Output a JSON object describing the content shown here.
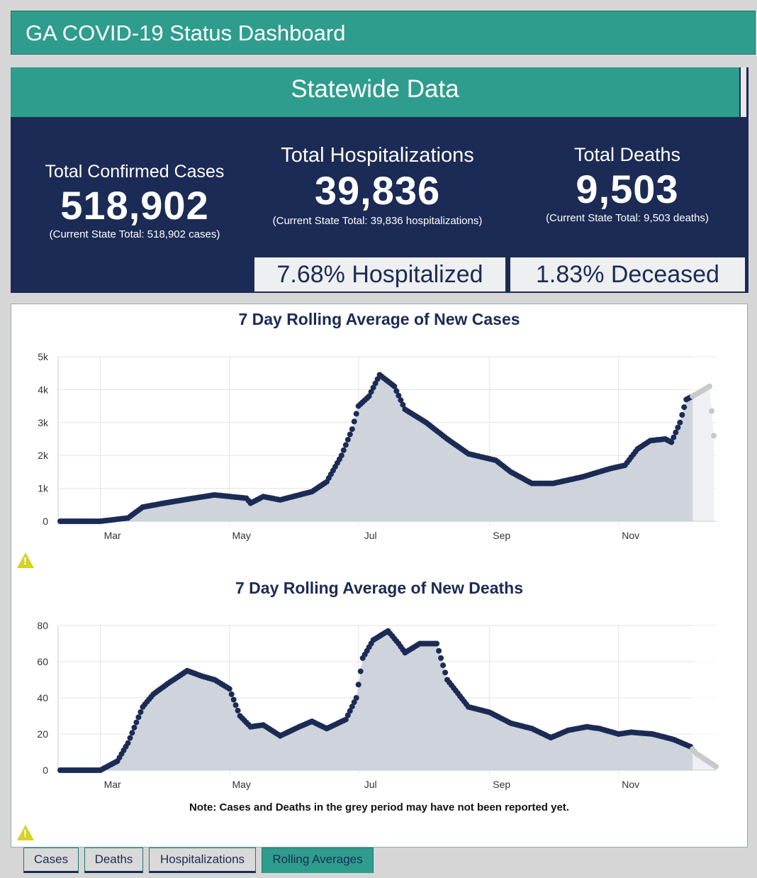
{
  "header": {
    "title": "GA COVID-19 Status Dashboard"
  },
  "statewide": {
    "title": "Statewide Data",
    "cases": {
      "label": "Total Confirmed Cases",
      "value": "518,902",
      "sub": "(Current State Total: 518,902 cases)"
    },
    "hospitalizations": {
      "label": "Total Hospitalizations",
      "value": "39,836",
      "sub": "(Current State Total: 39,836 hospitalizations)",
      "pct": "7.68% Hospitalized"
    },
    "deaths": {
      "label": "Total Deaths",
      "value": "9,503",
      "sub": "(Current State Total: 9,503 deaths)",
      "pct": "1.83% Deceased"
    }
  },
  "note": "Note: Cases and Deaths in the grey period may have not been reported yet.",
  "tabs": [
    {
      "label": "Cases"
    },
    {
      "label": "Deaths"
    },
    {
      "label": "Hospitalizations"
    },
    {
      "label": "Rolling Averages",
      "active": true
    }
  ],
  "colors": {
    "teal": "#2f9d8e",
    "navy": "#1b2b55",
    "area": "#ced3dc",
    "grey_period": "#c9c9c9",
    "warning": "#d8d12a"
  },
  "icons": [
    "warning-icon"
  ],
  "chart_data": [
    {
      "type": "area",
      "title": "7 Day Rolling Average of New Cases",
      "xlabel": "",
      "ylabel": "",
      "xlim": [
        "2020-02-10",
        "2020-12-17"
      ],
      "ylim": [
        0,
        5000
      ],
      "yticks": [
        {
          "v": 0,
          "label": "0"
        },
        {
          "v": 1000,
          "label": "1k"
        },
        {
          "v": 2000,
          "label": "2k"
        },
        {
          "v": 3000,
          "label": "3k"
        },
        {
          "v": 4000,
          "label": "4k"
        },
        {
          "v": 5000,
          "label": "5k"
        }
      ],
      "xticks": [
        {
          "date": "2020-03-01",
          "label": "Mar"
        },
        {
          "date": "2020-05-01",
          "label": "May"
        },
        {
          "date": "2020-07-01",
          "label": "Jul"
        },
        {
          "date": "2020-09-01",
          "label": "Sep"
        },
        {
          "date": "2020-11-01",
          "label": "Nov"
        }
      ],
      "grid": true,
      "grey_period_start": "2020-12-06",
      "points": [
        [
          "2020-02-11",
          0
        ],
        [
          "2020-03-01",
          0
        ],
        [
          "2020-03-14",
          100
        ],
        [
          "2020-03-21",
          430
        ],
        [
          "2020-03-31",
          550
        ],
        [
          "2020-04-14",
          700
        ],
        [
          "2020-04-24",
          800
        ],
        [
          "2020-05-09",
          700
        ],
        [
          "2020-05-11",
          550
        ],
        [
          "2020-05-17",
          750
        ],
        [
          "2020-05-25",
          650
        ],
        [
          "2020-06-03",
          800
        ],
        [
          "2020-06-09",
          900
        ],
        [
          "2020-06-16",
          1200
        ],
        [
          "2020-06-23",
          2000
        ],
        [
          "2020-06-28",
          2800
        ],
        [
          "2020-07-01",
          3500
        ],
        [
          "2020-07-06",
          3800
        ],
        [
          "2020-07-11",
          4450
        ],
        [
          "2020-07-18",
          4100
        ],
        [
          "2020-07-23",
          3400
        ],
        [
          "2020-08-02",
          3000
        ],
        [
          "2020-08-12",
          2500
        ],
        [
          "2020-08-22",
          2050
        ],
        [
          "2020-09-04",
          1850
        ],
        [
          "2020-09-11",
          1500
        ],
        [
          "2020-09-21",
          1150
        ],
        [
          "2020-10-01",
          1150
        ],
        [
          "2020-10-15",
          1350
        ],
        [
          "2020-10-28",
          1600
        ],
        [
          "2020-11-04",
          1700
        ],
        [
          "2020-11-10",
          2200
        ],
        [
          "2020-11-16",
          2450
        ],
        [
          "2020-11-23",
          2500
        ],
        [
          "2020-11-26",
          2400
        ],
        [
          "2020-11-30",
          3000
        ],
        [
          "2020-12-03",
          3700
        ],
        [
          "2020-12-06",
          3800
        ],
        [
          "2020-12-14",
          4100
        ],
        [
          "2020-12-16",
          2600
        ]
      ]
    },
    {
      "type": "area",
      "title": "7 Day Rolling Average of New Deaths",
      "xlabel": "",
      "ylabel": "",
      "xlim": [
        "2020-02-10",
        "2020-12-17"
      ],
      "ylim": [
        0,
        80
      ],
      "yticks": [
        {
          "v": 0,
          "label": "0"
        },
        {
          "v": 20,
          "label": "20"
        },
        {
          "v": 40,
          "label": "40"
        },
        {
          "v": 60,
          "label": "60"
        },
        {
          "v": 80,
          "label": "80"
        }
      ],
      "xticks": [
        {
          "date": "2020-03-01",
          "label": "Mar"
        },
        {
          "date": "2020-05-01",
          "label": "May"
        },
        {
          "date": "2020-07-01",
          "label": "Jul"
        },
        {
          "date": "2020-09-01",
          "label": "Sep"
        },
        {
          "date": "2020-11-01",
          "label": "Nov"
        }
      ],
      "grid": true,
      "grey_period_start": "2020-12-06",
      "points": [
        [
          "2020-02-11",
          0
        ],
        [
          "2020-03-01",
          0
        ],
        [
          "2020-03-09",
          5
        ],
        [
          "2020-03-14",
          15
        ],
        [
          "2020-03-21",
          35
        ],
        [
          "2020-03-26",
          42
        ],
        [
          "2020-04-02",
          48
        ],
        [
          "2020-04-11",
          55
        ],
        [
          "2020-04-18",
          52
        ],
        [
          "2020-04-24",
          50
        ],
        [
          "2020-05-01",
          45
        ],
        [
          "2020-05-06",
          30
        ],
        [
          "2020-05-11",
          24
        ],
        [
          "2020-05-17",
          25
        ],
        [
          "2020-05-25",
          19
        ],
        [
          "2020-06-03",
          24
        ],
        [
          "2020-06-09",
          27
        ],
        [
          "2020-06-16",
          23
        ],
        [
          "2020-06-25",
          28
        ],
        [
          "2020-06-30",
          40
        ],
        [
          "2020-07-03",
          62
        ],
        [
          "2020-07-08",
          72
        ],
        [
          "2020-07-15",
          77
        ],
        [
          "2020-07-20",
          70
        ],
        [
          "2020-07-23",
          65
        ],
        [
          "2020-07-30",
          70
        ],
        [
          "2020-08-07",
          70
        ],
        [
          "2020-08-12",
          50
        ],
        [
          "2020-08-22",
          35
        ],
        [
          "2020-09-01",
          32
        ],
        [
          "2020-09-11",
          26
        ],
        [
          "2020-09-21",
          23
        ],
        [
          "2020-09-30",
          18
        ],
        [
          "2020-10-08",
          22
        ],
        [
          "2020-10-17",
          24
        ],
        [
          "2020-10-23",
          23
        ],
        [
          "2020-11-01",
          20
        ],
        [
          "2020-11-07",
          21
        ],
        [
          "2020-11-17",
          20
        ],
        [
          "2020-11-27",
          17
        ],
        [
          "2020-12-05",
          13
        ],
        [
          "2020-12-08",
          9
        ],
        [
          "2020-12-17",
          2
        ]
      ]
    }
  ]
}
